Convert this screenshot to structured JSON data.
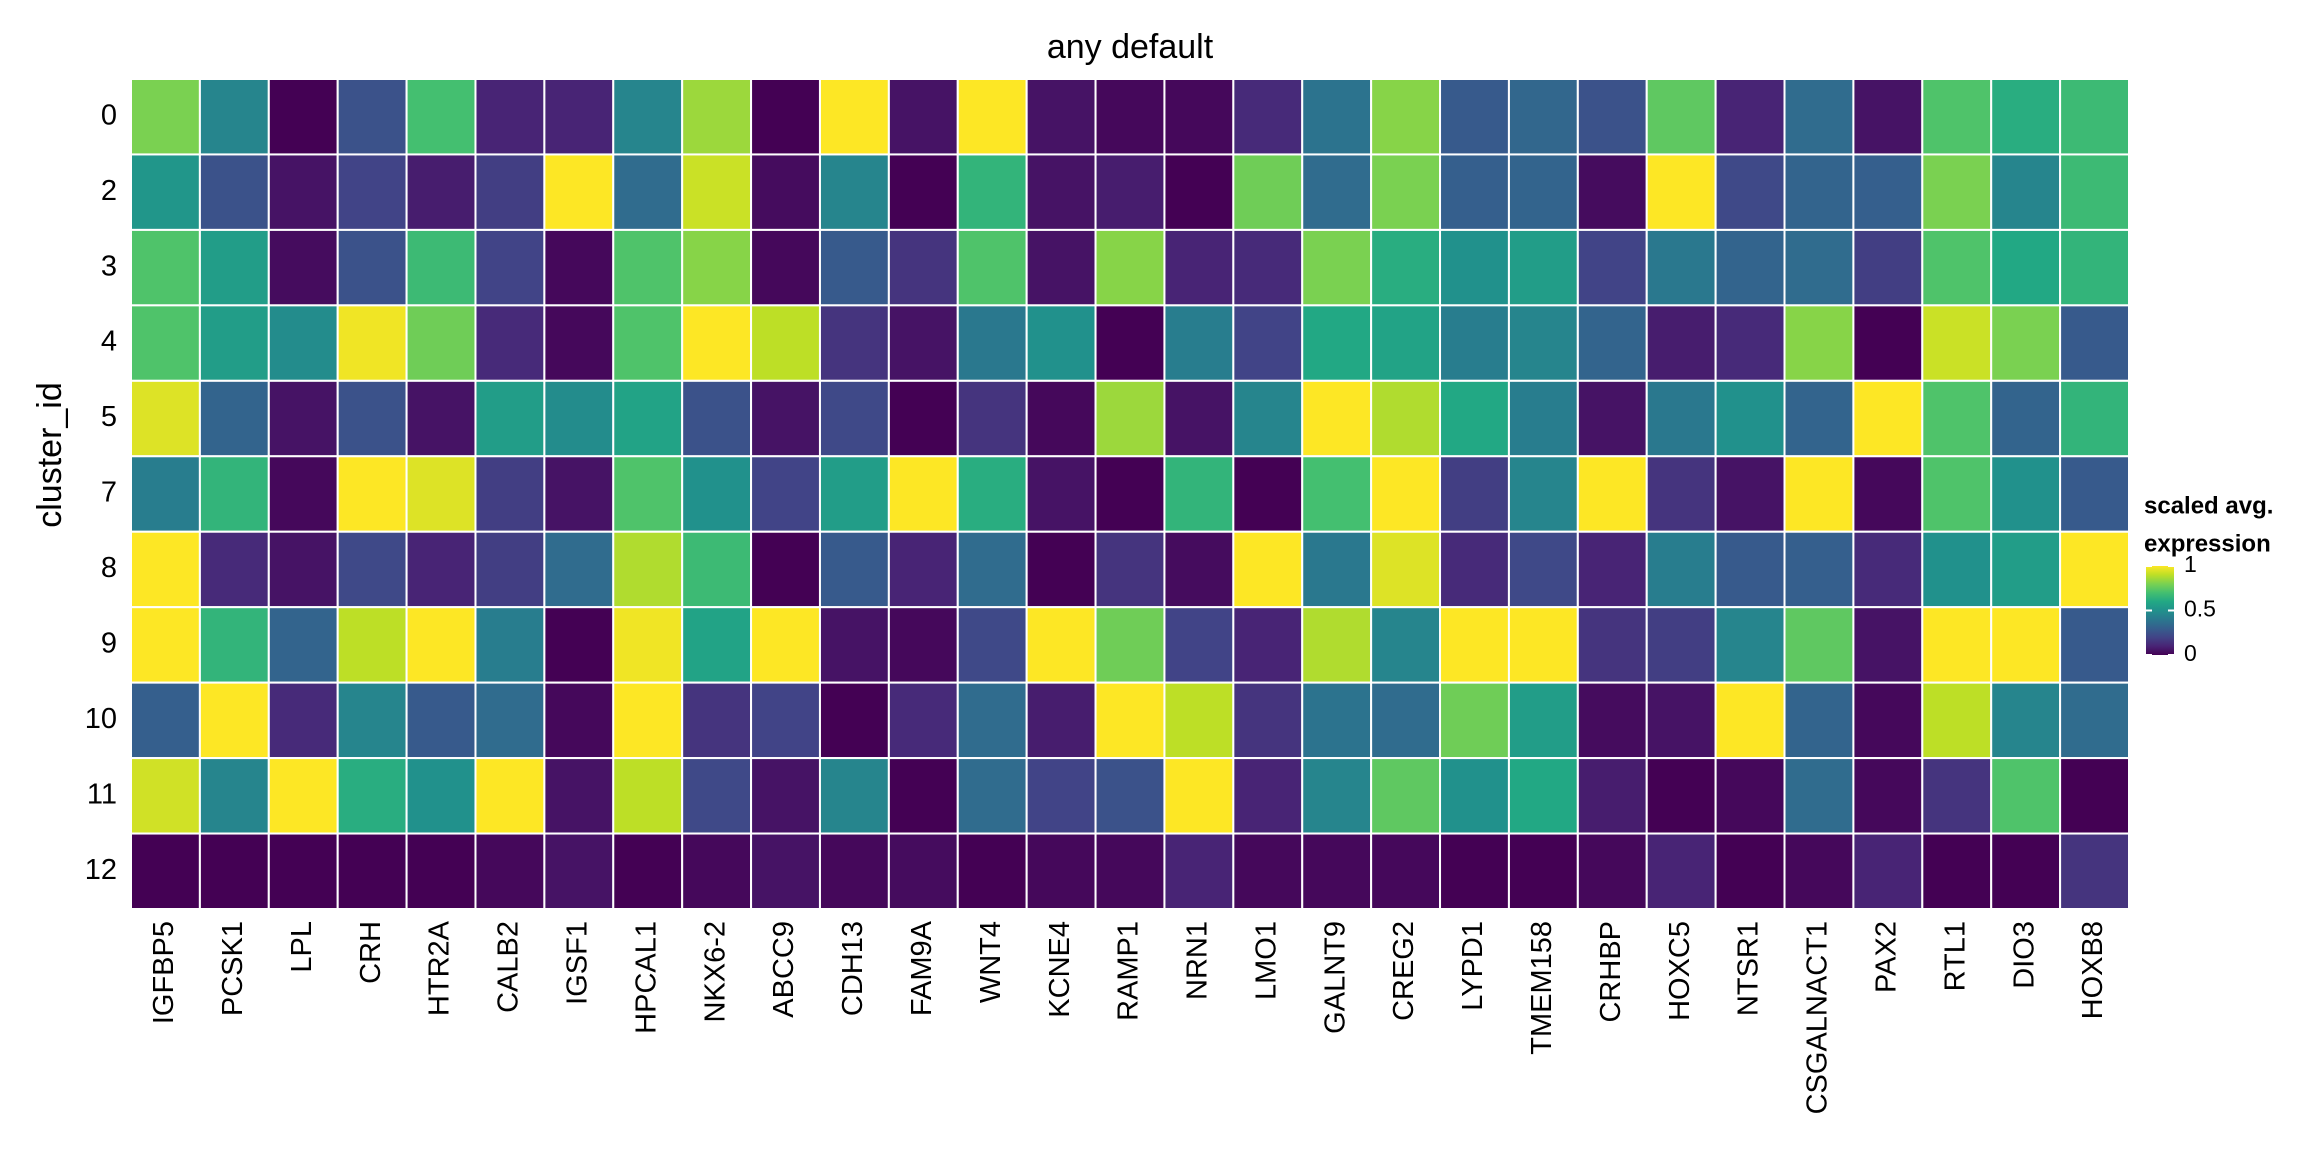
{
  "chart_data": {
    "type": "heatmap",
    "title": "any default",
    "ylabel": "cluster_id",
    "x_categories": [
      "IGFBP5",
      "PCSK1",
      "LPL",
      "CRH",
      "HTR2A",
      "CALB2",
      "IGSF1",
      "HPCAL1",
      "NKX6-2",
      "ABCC9",
      "CDH13",
      "FAM9A",
      "WNT4",
      "KCNE4",
      "RAMP1",
      "NRN1",
      "LMO1",
      "GALNT9",
      "CREG2",
      "LYPD1",
      "TMEM158",
      "CRHBP",
      "HOXC5",
      "NTSR1",
      "CSGALNACT1",
      "PAX2",
      "RTL1",
      "DIO3",
      "HOXB8"
    ],
    "y_categories": [
      "0",
      "2",
      "3",
      "4",
      "5",
      "7",
      "8",
      "9",
      "10",
      "11",
      "12"
    ],
    "values": [
      [
        0.8,
        0.45,
        0.0,
        0.25,
        0.7,
        0.1,
        0.1,
        0.45,
        0.85,
        0.0,
        1,
        0.05,
        1,
        0.05,
        0.02,
        0.02,
        0.12,
        0.38,
        0.82,
        0.28,
        0.33,
        0.25,
        0.75,
        0.1,
        0.35,
        0.05,
        0.72,
        0.62,
        0.68
      ],
      [
        0.52,
        0.25,
        0.05,
        0.2,
        0.08,
        0.18,
        1,
        0.35,
        0.92,
        0.03,
        0.45,
        0.0,
        0.65,
        0.05,
        0.08,
        0.0,
        0.78,
        0.35,
        0.8,
        0.3,
        0.32,
        0.03,
        1,
        0.22,
        0.32,
        0.3,
        0.8,
        0.45,
        0.68
      ],
      [
        0.72,
        0.55,
        0.03,
        0.25,
        0.68,
        0.2,
        0.02,
        0.72,
        0.82,
        0.02,
        0.28,
        0.15,
        0.72,
        0.05,
        0.82,
        0.1,
        0.12,
        0.8,
        0.62,
        0.5,
        0.55,
        0.2,
        0.4,
        0.32,
        0.35,
        0.18,
        0.72,
        0.6,
        0.65
      ],
      [
        0.72,
        0.55,
        0.48,
        0.98,
        0.78,
        0.12,
        0.02,
        0.72,
        1,
        0.9,
        0.15,
        0.05,
        0.4,
        0.5,
        0.0,
        0.42,
        0.2,
        0.6,
        0.58,
        0.42,
        0.45,
        0.32,
        0.08,
        0.12,
        0.82,
        0.0,
        0.92,
        0.8,
        0.28
      ],
      [
        0.95,
        0.32,
        0.05,
        0.25,
        0.05,
        0.55,
        0.48,
        0.58,
        0.25,
        0.05,
        0.22,
        0.0,
        0.15,
        0.02,
        0.85,
        0.05,
        0.45,
        1,
        0.88,
        0.6,
        0.42,
        0.05,
        0.4,
        0.5,
        0.32,
        1,
        0.72,
        0.32,
        0.65
      ],
      [
        0.42,
        0.65,
        0.02,
        1,
        0.95,
        0.18,
        0.05,
        0.72,
        0.5,
        0.2,
        0.55,
        1,
        0.62,
        0.05,
        0.0,
        0.65,
        0.0,
        0.7,
        1,
        0.18,
        0.45,
        1,
        0.15,
        0.05,
        1,
        0.02,
        0.72,
        0.5,
        0.28
      ],
      [
        1,
        0.12,
        0.05,
        0.22,
        0.1,
        0.18,
        0.35,
        0.88,
        0.68,
        0.0,
        0.28,
        0.1,
        0.35,
        0.0,
        0.15,
        0.03,
        1,
        0.4,
        0.95,
        0.12,
        0.22,
        0.1,
        0.42,
        0.28,
        0.3,
        0.12,
        0.5,
        0.55,
        1
      ],
      [
        1,
        0.65,
        0.32,
        0.9,
        1,
        0.42,
        0.0,
        0.98,
        0.58,
        1,
        0.05,
        0.02,
        0.22,
        1,
        0.78,
        0.2,
        0.1,
        0.88,
        0.45,
        1,
        1,
        0.15,
        0.18,
        0.45,
        0.75,
        0.05,
        1,
        1,
        0.28
      ],
      [
        0.3,
        1,
        0.12,
        0.45,
        0.28,
        0.35,
        0.02,
        1,
        0.15,
        0.2,
        0.0,
        0.12,
        0.35,
        0.08,
        1,
        0.9,
        0.15,
        0.38,
        0.35,
        0.78,
        0.55,
        0.03,
        0.05,
        1,
        0.32,
        0.02,
        0.9,
        0.45,
        0.35
      ],
      [
        0.93,
        0.45,
        1,
        0.62,
        0.5,
        1,
        0.05,
        0.9,
        0.22,
        0.05,
        0.45,
        0.0,
        0.35,
        0.2,
        0.25,
        1,
        0.1,
        0.45,
        0.75,
        0.5,
        0.6,
        0.08,
        0.0,
        0.02,
        0.35,
        0.02,
        0.15,
        0.72,
        0.0
      ],
      [
        0.0,
        0.0,
        0.0,
        0.0,
        0.0,
        0.02,
        0.05,
        0.0,
        0.02,
        0.05,
        0.02,
        0.03,
        0.0,
        0.02,
        0.02,
        0.1,
        0.02,
        0.02,
        0.02,
        0.0,
        0.0,
        0.02,
        0.1,
        0.0,
        0.02,
        0.1,
        0.0,
        0.0,
        0.15
      ]
    ],
    "colorscale": [
      "#440154",
      "#482475",
      "#414487",
      "#355f8d",
      "#2a788e",
      "#21918c",
      "#22a884",
      "#44bf70",
      "#7ad151",
      "#bddf26",
      "#fde725"
    ],
    "clim": [
      0,
      1
    ],
    "colorbar_title": [
      "scaled avg.",
      "expression"
    ],
    "colorbar_ticks": [
      0,
      0.5,
      1
    ]
  }
}
